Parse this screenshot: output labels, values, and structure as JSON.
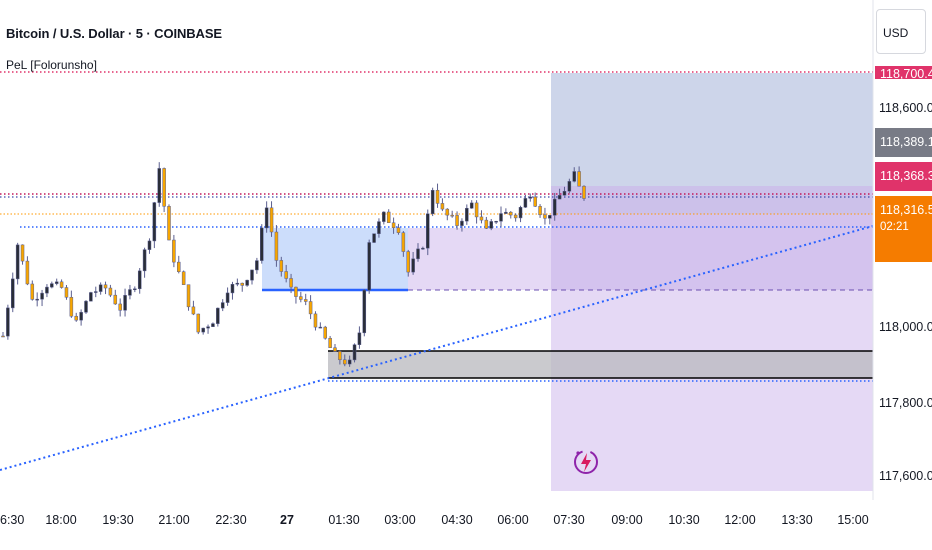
{
  "header": {
    "symbol_title": "Bitcoin / U.S. Dollar · 5 · COINBASE",
    "indicator_label": "PeL [Folorunsho]"
  },
  "currency_button": "USD",
  "price_tags": {
    "top_pink": "118,700.41",
    "grey": "118,389.11",
    "pink": "118,368.39",
    "orange_price": "118,316.57",
    "orange_countdown": "02:21"
  },
  "price_axis": [
    "118,600.00",
    "118,000.00",
    "117,800.00",
    "117,600.00"
  ],
  "time_axis": [
    {
      "label": "6:30",
      "bold": false
    },
    {
      "label": "18:00",
      "bold": false
    },
    {
      "label": "19:30",
      "bold": false
    },
    {
      "label": "21:00",
      "bold": false
    },
    {
      "label": "22:30",
      "bold": false
    },
    {
      "label": "27",
      "bold": true
    },
    {
      "label": "01:30",
      "bold": false
    },
    {
      "label": "03:00",
      "bold": false
    },
    {
      "label": "04:30",
      "bold": false
    },
    {
      "label": "06:00",
      "bold": false
    },
    {
      "label": "07:30",
      "bold": false
    },
    {
      "label": "09:00",
      "bold": false
    },
    {
      "label": "10:30",
      "bold": false
    },
    {
      "label": "12:00",
      "bold": false
    },
    {
      "label": "13:30",
      "bold": false
    },
    {
      "label": "15:00",
      "bold": false
    }
  ],
  "colors": {
    "candle_up": "#2a2e39",
    "candle_down": "#f7a600",
    "wick": "#5b5f8f",
    "trend": "#2962ff",
    "level_magenta": "#c2185b",
    "level_orange": "#ff9800",
    "zone_blue": "#bbd2f9",
    "zone_grey": "#b8b8be",
    "proj_blue": "#cdd5ea",
    "proj_purple": "#e5d9f5"
  },
  "chart_data": {
    "type": "candlestick",
    "timeframe": "5",
    "x_tick_labels": [
      "6:30",
      "18:00",
      "19:30",
      "21:00",
      "22:30",
      "27",
      "01:30",
      "03:00",
      "04:30",
      "06:00",
      "07:30",
      "09:00",
      "10:30",
      "12:00",
      "13:30",
      "15:00"
    ],
    "y_tick_labels": [
      "118,600.00",
      "118,000.00",
      "117,800.00",
      "117,600.00"
    ],
    "ylim": [
      117560,
      118760
    ],
    "levels": {
      "top_dotted": 118700.41,
      "magenta_dotted": 118368.39,
      "orange_dotted": 118316.57,
      "blue_dotted": 118280,
      "mid_dashed": 118090,
      "grey_zone": [
        117870,
        117955
      ],
      "blue_zone": [
        118090,
        118280
      ]
    },
    "close_path": [
      [
        0,
        117950
      ],
      [
        3,
        118180
      ],
      [
        6,
        118040
      ],
      [
        9,
        118080
      ],
      [
        12,
        118070
      ],
      [
        15,
        117980
      ],
      [
        18,
        118060
      ],
      [
        21,
        118070
      ],
      [
        24,
        118020
      ],
      [
        27,
        118080
      ],
      [
        30,
        118200
      ],
      [
        32,
        118370
      ],
      [
        34,
        118180
      ],
      [
        37,
        118070
      ],
      [
        40,
        117960
      ],
      [
        43,
        117990
      ],
      [
        46,
        118070
      ],
      [
        49,
        118080
      ],
      [
        52,
        118140
      ],
      [
        54,
        118280
      ],
      [
        56,
        118140
      ],
      [
        59,
        118060
      ],
      [
        62,
        118030
      ],
      [
        65,
        117960
      ],
      [
        68,
        117900
      ],
      [
        71,
        117880
      ],
      [
        73,
        117960
      ],
      [
        75,
        118190
      ],
      [
        78,
        118250
      ],
      [
        81,
        118220
      ],
      [
        83,
        118110
      ],
      [
        86,
        118180
      ],
      [
        88,
        118320
      ],
      [
        90,
        118260
      ],
      [
        93,
        118230
      ],
      [
        96,
        118280
      ],
      [
        99,
        118210
      ],
      [
        102,
        118260
      ],
      [
        105,
        118250
      ],
      [
        108,
        118310
      ],
      [
        111,
        118240
      ],
      [
        114,
        118300
      ],
      [
        117,
        118350
      ],
      [
        118,
        118320
      ],
      [
        119,
        118300
      ]
    ]
  }
}
